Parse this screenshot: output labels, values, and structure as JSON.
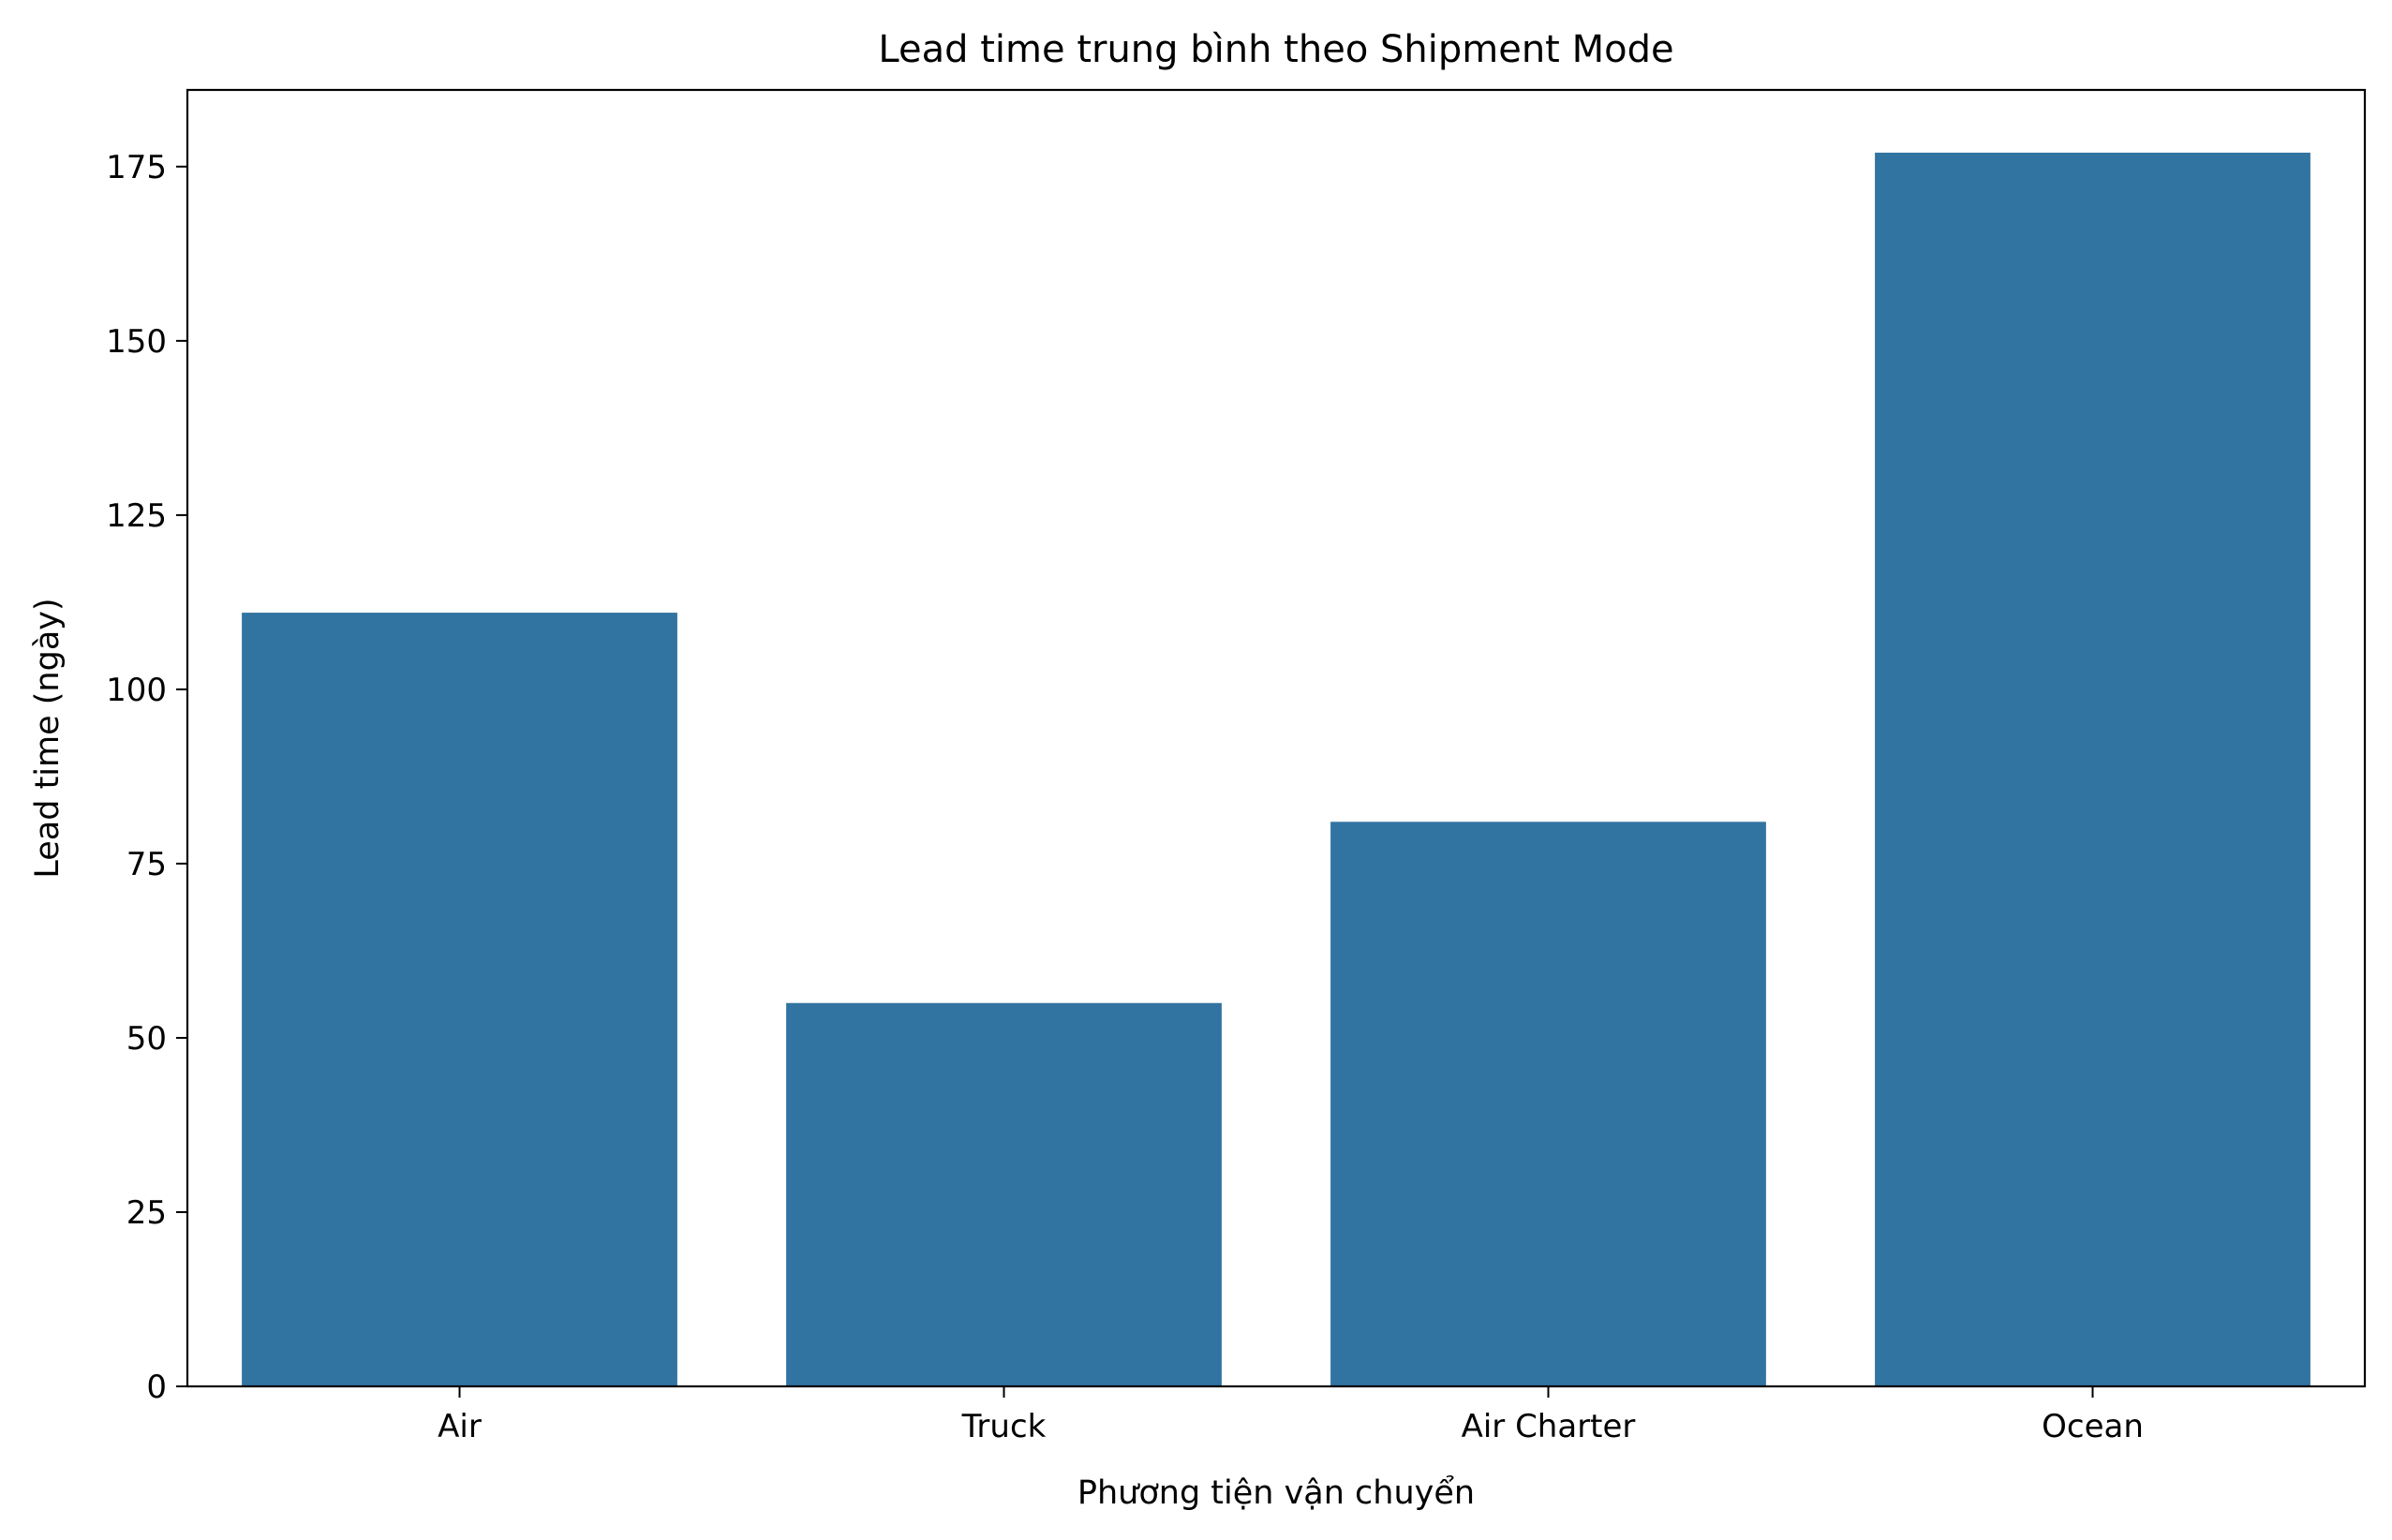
{
  "chart_data": {
    "type": "bar",
    "title": "Lead time trung bình theo Shipment Mode",
    "xlabel": "Phương tiện vận chuyển",
    "ylabel": "Lead time (ngày)",
    "categories": [
      "Air",
      "Truck",
      "Air Charter",
      "Ocean"
    ],
    "values": [
      111,
      55,
      81,
      177
    ],
    "ylim": [
      0,
      186
    ],
    "yticks": [
      0,
      25,
      50,
      75,
      100,
      125,
      150,
      175
    ],
    "bar_color": "#3274a1",
    "grid": false,
    "legend": "none"
  }
}
